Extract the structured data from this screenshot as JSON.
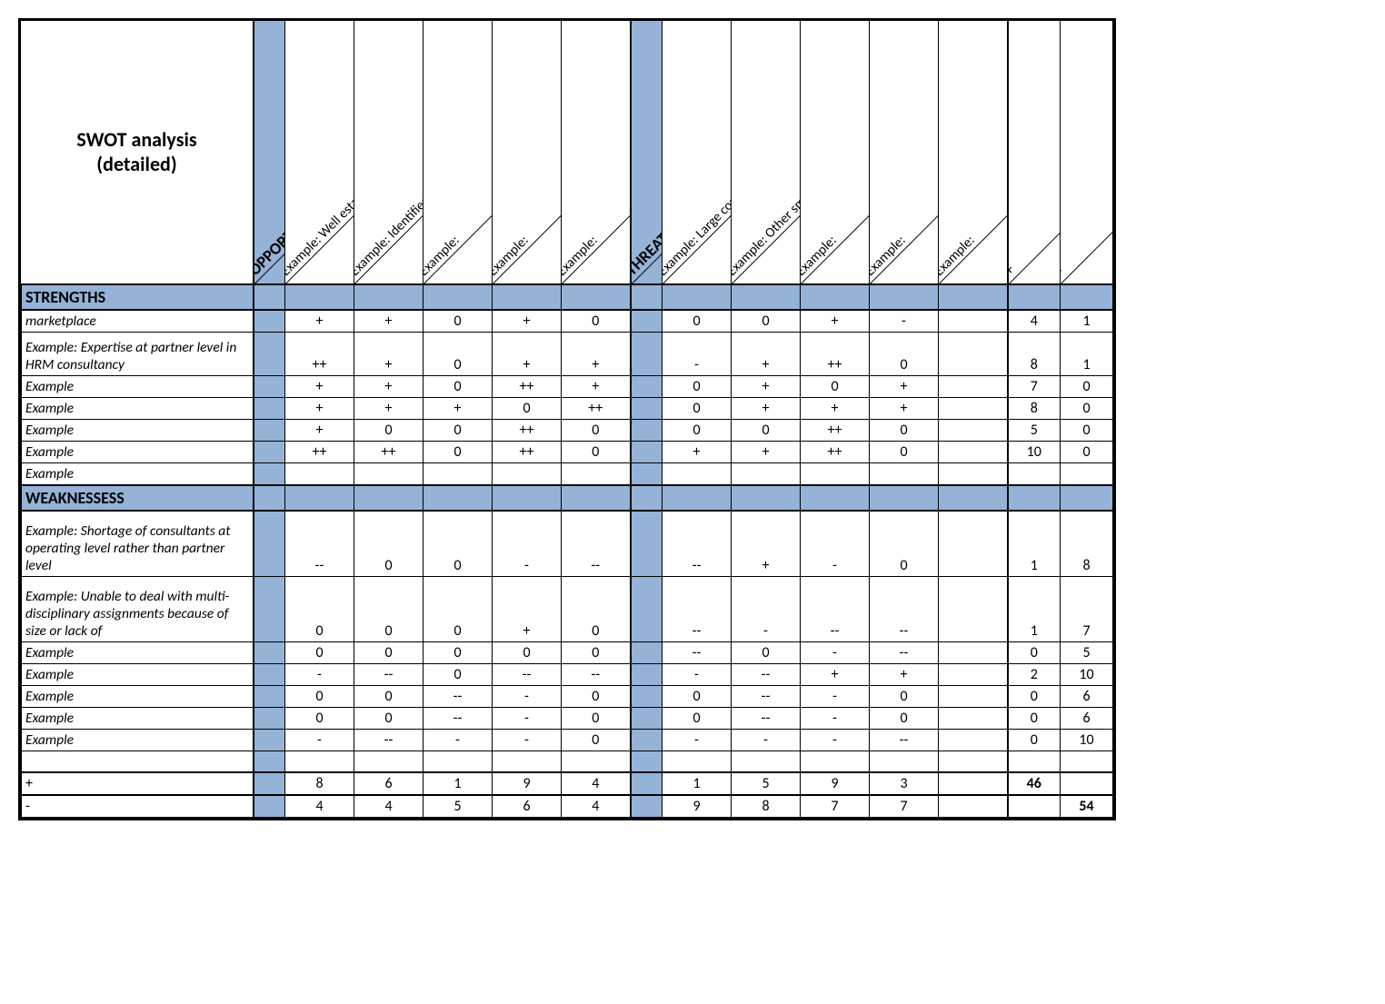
{
  "title_line1": "SWOT analysis",
  "title_line2": "(detailed)",
  "colors": {
    "blue": "#95b3d7",
    "border": "#000000",
    "bg": "#ffffff"
  },
  "fontsizes": {
    "title": 22,
    "section": 18,
    "diag": 15,
    "diag_bold": 18,
    "body": 16
  },
  "column_groups": {
    "opportunities_header": "OPPORTUNITIES",
    "threats_header": "THREATHS",
    "opportunities": [
      "Example: Well established position with a well defined market niche",
      "Example: Identified market for consultancy in areas other than HRM",
      "Example:",
      "Example:",
      "Example:"
    ],
    "threats": [
      "Example: Large consultancies operating at a minor level",
      "Example: Other small consultancies looking to invade the marketplace",
      "Example:",
      "Example:",
      "Example:"
    ],
    "sum_plus": "+",
    "sum_minus": "-"
  },
  "sections": {
    "strengths": "STRENGTHS",
    "weaknesses": "WEAKNESSESS"
  },
  "strength_rows": [
    {
      "label": "marketplace",
      "opp": [
        "+",
        "+",
        "0",
        "+",
        "0"
      ],
      "thr": [
        "0",
        "0",
        "+",
        "-",
        ""
      ],
      "plus": "4",
      "minus": "1"
    },
    {
      "label": "Example: Expertise at partner level in HRM consultancy",
      "tall": true,
      "opp": [
        "++",
        "+",
        "0",
        "+",
        "+"
      ],
      "thr": [
        "-",
        "+",
        "++",
        "0",
        ""
      ],
      "plus": "8",
      "minus": "1"
    },
    {
      "label": "Example",
      "opp": [
        "+",
        "+",
        "0",
        "++",
        "+"
      ],
      "thr": [
        "0",
        "+",
        "0",
        "+",
        ""
      ],
      "plus": "7",
      "minus": "0"
    },
    {
      "label": "Example",
      "opp": [
        "+",
        "+",
        "+",
        "0",
        "++"
      ],
      "thr": [
        "0",
        "+",
        "+",
        "+",
        ""
      ],
      "plus": "8",
      "minus": "0"
    },
    {
      "label": "Example",
      "opp": [
        "+",
        "0",
        "0",
        "++",
        "0"
      ],
      "thr": [
        "0",
        "0",
        "++",
        "0",
        ""
      ],
      "plus": "5",
      "minus": "0"
    },
    {
      "label": "Example",
      "opp": [
        "++",
        "++",
        "0",
        "++",
        "0"
      ],
      "thr": [
        "+",
        "+",
        "++",
        "0",
        ""
      ],
      "plus": "10",
      "minus": "0"
    },
    {
      "label": "Example",
      "opp": [
        "",
        "",
        "",
        "",
        ""
      ],
      "thr": [
        "",
        "",
        "",
        "",
        ""
      ],
      "plus": "",
      "minus": ""
    }
  ],
  "weakness_rows": [
    {
      "label": "Example: Shortage of consultants at operating level rather than partner level",
      "tall3": true,
      "opp": [
        "--",
        "0",
        "0",
        "-",
        "--"
      ],
      "thr": [
        "--",
        "+",
        "-",
        "0",
        ""
      ],
      "plus": "1",
      "minus": "8"
    },
    {
      "label": "Example: Unable to deal with multi-disciplinary assignments because of size or lack of",
      "tall3": true,
      "opp": [
        "0",
        "0",
        "0",
        "+",
        "0"
      ],
      "thr": [
        "--",
        "-",
        "--",
        "--",
        ""
      ],
      "plus": "1",
      "minus": "7"
    },
    {
      "label": "Example",
      "opp": [
        "0",
        "0",
        "0",
        "0",
        "0"
      ],
      "thr": [
        "--",
        "0",
        "-",
        "--",
        ""
      ],
      "plus": "0",
      "minus": "5"
    },
    {
      "label": "Example",
      "opp": [
        "-",
        "--",
        "0",
        "--",
        "--"
      ],
      "thr": [
        "-",
        "--",
        "+",
        "+",
        ""
      ],
      "plus": "2",
      "minus": "10"
    },
    {
      "label": "Example",
      "opp": [
        "0",
        "0",
        "--",
        "-",
        "0"
      ],
      "thr": [
        "0",
        "--",
        "-",
        "0",
        ""
      ],
      "plus": "0",
      "minus": "6"
    },
    {
      "label": "Example",
      "opp": [
        "0",
        "0",
        "--",
        "-",
        "0"
      ],
      "thr": [
        "0",
        "--",
        "-",
        "0",
        ""
      ],
      "plus": "0",
      "minus": "6"
    },
    {
      "label": "Example",
      "opp": [
        "-",
        "--",
        "-",
        "-",
        "0"
      ],
      "thr": [
        "-",
        "-",
        "-",
        "--",
        ""
      ],
      "plus": "0",
      "minus": "10"
    },
    {
      "label": "",
      "opp": [
        "",
        "",
        "",
        "",
        ""
      ],
      "thr": [
        "",
        "",
        "",
        "",
        ""
      ],
      "plus": "",
      "minus": ""
    }
  ],
  "totals": {
    "plus_row": {
      "label": "+",
      "opp": [
        "8",
        "6",
        "1",
        "9",
        "4"
      ],
      "thr": [
        "1",
        "5",
        "9",
        "3",
        ""
      ],
      "plus": "46",
      "minus": ""
    },
    "minus_row": {
      "label": "-",
      "opp": [
        "4",
        "4",
        "5",
        "6",
        "4"
      ],
      "thr": [
        "9",
        "8",
        "7",
        "7",
        ""
      ],
      "plus": "",
      "minus": "54"
    }
  }
}
